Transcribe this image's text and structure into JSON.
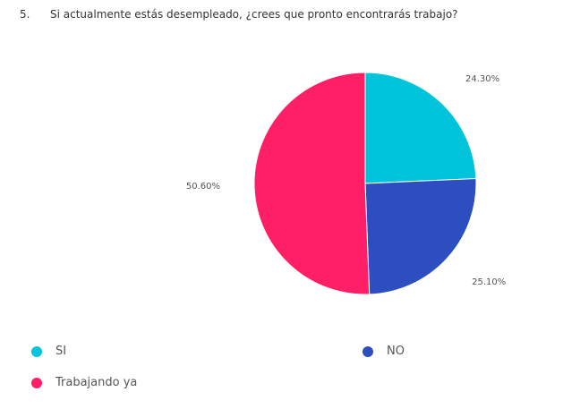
{
  "question": {
    "number": "5.",
    "text": "Si actualmente estás desempleado, ¿crees que pronto encontrarás trabajo?"
  },
  "chart_data": {
    "type": "pie",
    "title": "Si actualmente estás desempleado, ¿crees que pronto encontrarás trabajo?",
    "start_angle": "top (12 o'clock), clockwise",
    "slices": [
      {
        "label": "SI",
        "value": 24.3,
        "value_label": "24.30%",
        "color": "#00c4db"
      },
      {
        "label": "NO",
        "value": 25.1,
        "value_label": "25.10%",
        "color": "#2d4ec0"
      },
      {
        "label": "Trabajando ya",
        "value": 50.6,
        "value_label": "50.60%",
        "color": "#ff1f66"
      }
    ],
    "legend_placement": "bottom"
  }
}
